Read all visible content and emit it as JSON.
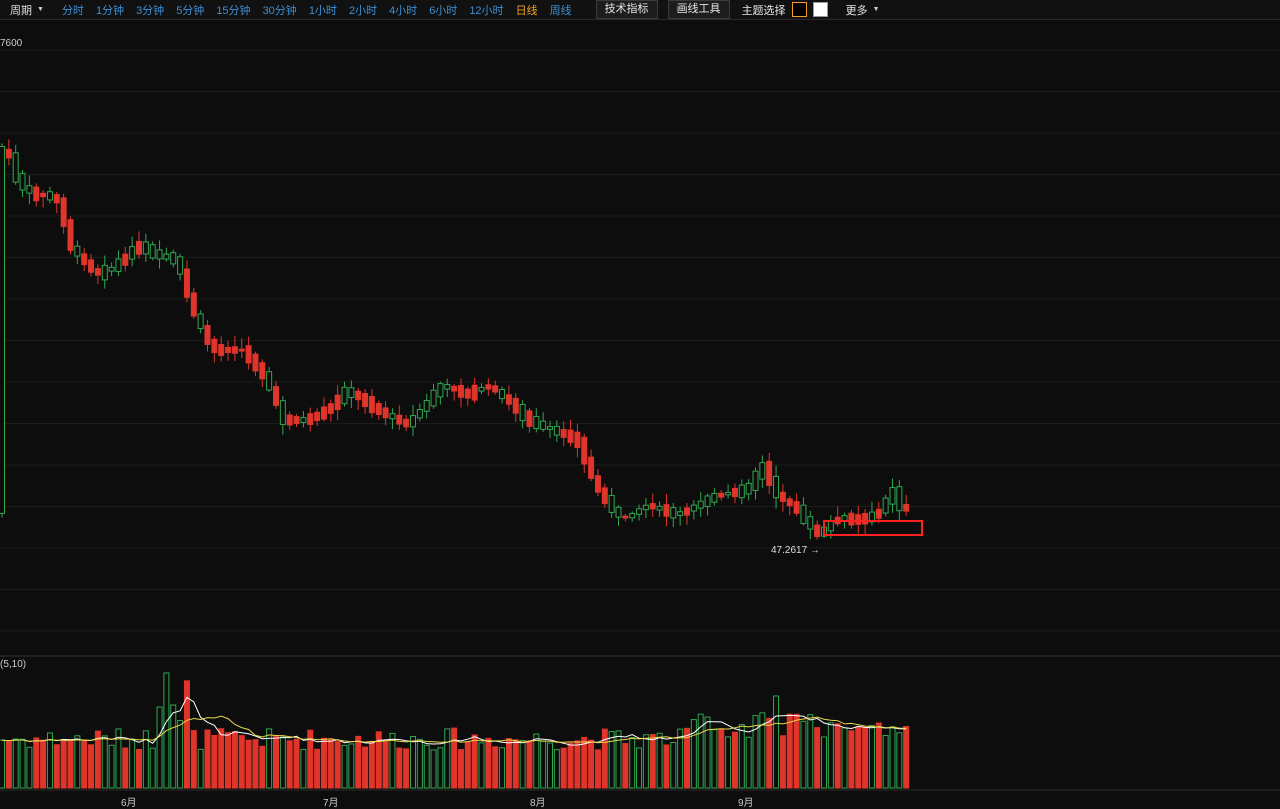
{
  "toolbar": {
    "period_label": "周期",
    "timeframes": [
      "分时",
      "1分钟",
      "3分钟",
      "5分钟",
      "15分钟",
      "30分钟",
      "1小时",
      "2小时",
      "4小时",
      "6小时",
      "12小时",
      "日线",
      "周线"
    ],
    "active_timeframe": "日线",
    "indicators_btn": "技术指标",
    "drawing_btn": "画线工具",
    "theme_label": "主题选择",
    "more_label": "更多"
  },
  "chart": {
    "top_price_label": "7600",
    "min_marker_label": "47.2617 →",
    "volume_label": "(5,10)",
    "months": [
      "6月",
      "7月",
      "8月",
      "9月"
    ],
    "colors": {
      "up": "#2fa84f",
      "down": "#e0352b",
      "ma5": "#ffffff",
      "ma10": "#e8d84a",
      "highlight": "#ff2020"
    }
  }
}
